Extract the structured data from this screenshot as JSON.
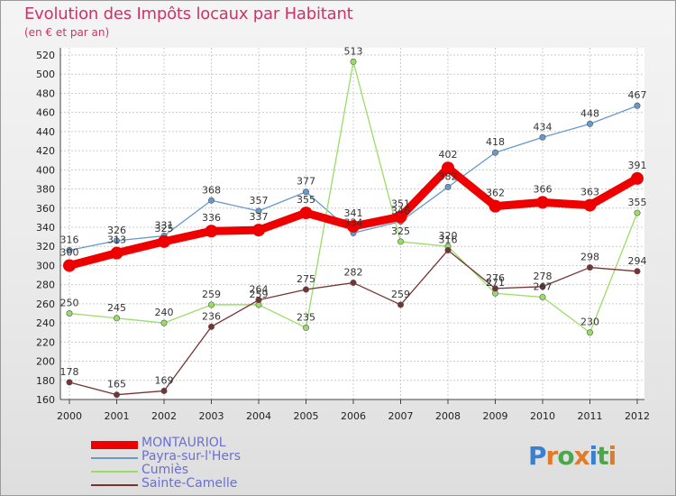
{
  "header": {
    "title": "Evolution des Impôts locaux par Habitant",
    "subtitle": "(en € et par an)"
  },
  "logo": {
    "letters": [
      "P",
      "r",
      "o",
      "x",
      "i",
      "t",
      "i"
    ],
    "colors": [
      "#3a7fd0",
      "#e07b2a",
      "#4aa84a",
      "#e07b2a",
      "#3a7fd0",
      "#4aa84a",
      "#e07b2a"
    ]
  },
  "chart_data": {
    "type": "line",
    "x": [
      "2000",
      "2001",
      "2002",
      "2003",
      "2004",
      "2005",
      "2006",
      "2007",
      "2008",
      "2009",
      "2010",
      "2011",
      "2012"
    ],
    "ylim": [
      160,
      520
    ],
    "yticks": [
      160,
      180,
      200,
      220,
      240,
      260,
      280,
      300,
      320,
      340,
      360,
      380,
      400,
      420,
      440,
      460,
      480,
      500,
      520
    ],
    "grid": true,
    "legend_position": "bottom-left",
    "series": [
      {
        "name": "MONTAURIOL",
        "color": "#ee0000",
        "emphasis": true,
        "values": [
          300,
          313,
          325,
          336,
          337,
          355,
          341,
          351,
          402,
          362,
          366,
          363,
          391
        ]
      },
      {
        "name": "Payra-sur-l'Hers",
        "color": "#6699cc",
        "emphasis": false,
        "values": [
          316,
          326,
          331,
          368,
          357,
          377,
          334,
          346,
          382,
          418,
          434,
          448,
          467
        ]
      },
      {
        "name": "Cumiès",
        "color": "#99dd66",
        "emphasis": false,
        "values": [
          250,
          245,
          240,
          259,
          259,
          235,
          513,
          325,
          320,
          271,
          267,
          230,
          355
        ]
      },
      {
        "name": "Sainte-Camelle",
        "color": "#773333",
        "emphasis": false,
        "values": [
          178,
          165,
          169,
          236,
          264,
          275,
          282,
          259,
          316,
          276,
          278,
          298,
          294
        ]
      }
    ]
  }
}
